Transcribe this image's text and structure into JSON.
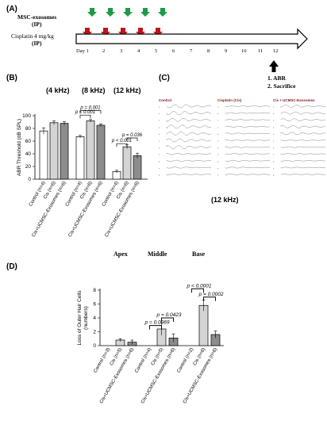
{
  "panel_a": {
    "label": "(A)",
    "msc_label": "MSC-exosomes",
    "msc_route": "(IP)",
    "cis_label": "Cisplatin 4 mg/kg",
    "cis_route": "(IP)",
    "days": [
      "Day 1",
      "2",
      "3",
      "4",
      "5",
      "6",
      "7",
      "8",
      "9",
      "10",
      "11",
      "12"
    ],
    "end_steps": [
      "1.  ABR",
      "2.  Sacrifice"
    ],
    "colors": {
      "msc": "#1f9a4a",
      "cis": "#c0141a"
    }
  },
  "panel_b": {
    "label": "(B)",
    "freq_titles": [
      "(4 kHz)",
      "(8 kHz)",
      "(12 kHz)"
    ],
    "chart_data": {
      "type": "bar",
      "ylabel": "ABR Threshold (dB SPL)",
      "ylim": [
        0,
        100
      ],
      "yticks": [
        0,
        20,
        40,
        60,
        80,
        100
      ],
      "categories": [
        "Control (n=4)",
        "Cis (n=6)",
        "Cis+UCMSC-Exosomes (n=6)"
      ],
      "groups": [
        {
          "name": "(4 kHz)",
          "values": [
            76,
            89,
            88
          ],
          "errors": [
            5,
            3,
            3
          ]
        },
        {
          "name": "(8 kHz)",
          "values": [
            67,
            92,
            85
          ],
          "errors": [
            2,
            2,
            2
          ]
        },
        {
          "name": "(12 kHz)",
          "values": [
            12,
            51,
            37
          ],
          "errors": [
            2,
            3,
            4
          ]
        }
      ],
      "bar_colors": [
        "#ffffff",
        "#d4d4d4",
        "#8c8c8c"
      ],
      "annotations": [
        "p = 0.001",
        "p < 0.001",
        "p = 0.036",
        "p < 0.001"
      ]
    }
  },
  "panel_c": {
    "label": "(C)",
    "titles": [
      "Control",
      "Cisplatin (Cis)",
      "Cis + UCMSC-Exosomes"
    ],
    "caption": "(12 kHz)"
  },
  "panel_d": {
    "label": "(D)",
    "region_titles": [
      "Apex",
      "Middle",
      "Base"
    ],
    "chart_data": {
      "type": "bar",
      "ylabel": "Loss of Outer Hair Cells (numbers)",
      "ylim": [
        0,
        8
      ],
      "yticks": [
        0,
        2,
        4,
        6,
        8
      ],
      "groups": [
        {
          "name": "Apex",
          "categories": [
            "Control (n=3)",
            "Cis (n=5)",
            "Cis+UCMSC-Exosomes (n=6)"
          ],
          "values": [
            0,
            0.8,
            0.5
          ],
          "errors": [
            0,
            0.2,
            0.3
          ]
        },
        {
          "name": "Middle",
          "categories": [
            "Control (n=4)",
            "Cis (n=5)",
            "Cis+UCMSC-Exosomes (n=6)"
          ],
          "values": [
            0,
            2.4,
            1.1
          ],
          "errors": [
            0,
            0.9,
            0.6
          ]
        },
        {
          "name": "Base",
          "categories": [
            "Control (n=2)",
            "Cis (n=6)",
            "Cis+UCMSC-Exosomes (n=6)"
          ],
          "values": [
            0,
            5.8,
            1.6
          ],
          "errors": [
            0,
            0.8,
            0.5
          ]
        }
      ],
      "bar_colors": [
        "#ffffff",
        "#d4d4d4",
        "#8c8c8c"
      ],
      "annotations": [
        "p = 0.0423",
        "p = 0.0069",
        "p < 0.0001",
        "p = 0.0002"
      ]
    }
  }
}
